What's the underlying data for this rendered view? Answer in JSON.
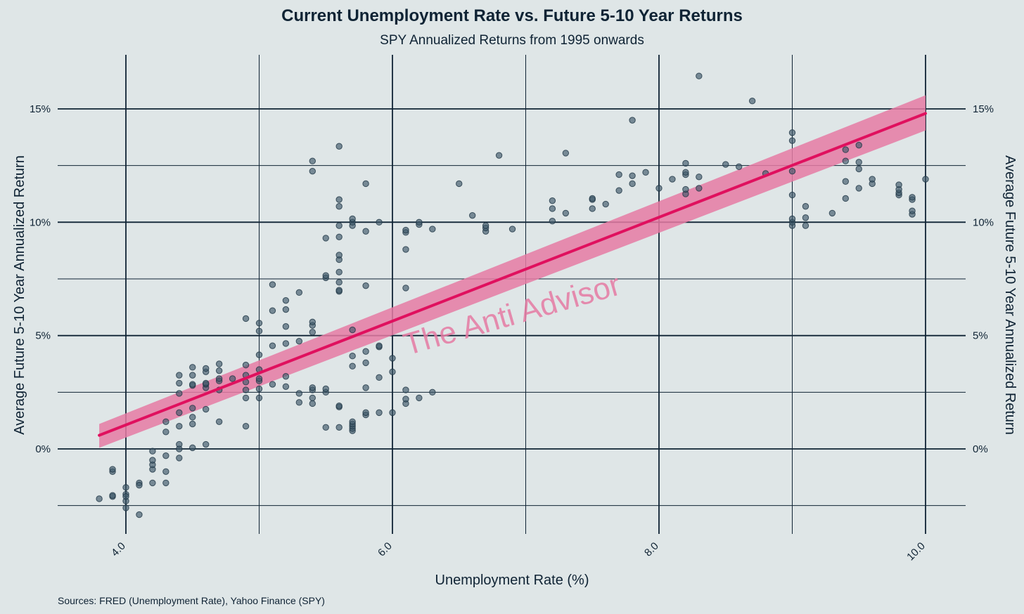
{
  "chart_data": {
    "type": "scatter",
    "title": "Current Unemployment Rate vs. Future 5-10 Year Returns",
    "subtitle": "SPY Annualized Returns from 1995 onwards",
    "xlabel": "Unemployment Rate (%)",
    "ylabel": "Average Future 5-10 Year Annualized Return",
    "ylabel_right": "Average Future 5-10 Year Annualized Return",
    "source": "Sources: FRED (Unemployment Rate), Yahoo Finance (SPY)",
    "watermark": "The Anti Advisor",
    "xlim": [
      3.5,
      10.3
    ],
    "ylim": [
      -3.0,
      17.5
    ],
    "x_ticks": [
      {
        "value": 4.0,
        "label": "4.0"
      },
      {
        "value": 6.0,
        "label": "6.0"
      },
      {
        "value": 8.0,
        "label": "8.0"
      },
      {
        "value": 10.0,
        "label": "10.0"
      }
    ],
    "x_minor_grid": [
      5.0,
      7.0,
      9.0
    ],
    "y_ticks": [
      {
        "value": 0,
        "label": "0%"
      },
      {
        "value": 5,
        "label": "5%"
      },
      {
        "value": 10,
        "label": "10%"
      },
      {
        "value": 15,
        "label": "15%"
      }
    ],
    "y_minor_grid": [
      -2.5,
      2.5,
      7.5,
      12.5
    ],
    "grid": true,
    "colors": {
      "points": "#3d5868",
      "regression_line": "#e0105e",
      "confidence_band": "#e67aa3",
      "grid": "#0f2334",
      "background": "#dfe6e7"
    },
    "regression": {
      "x_start": 3.8,
      "y_start": 0.6,
      "x_end": 10.0,
      "y_end": 14.8,
      "ci_start": [
        0.05,
        1.1
      ],
      "ci_end": [
        14.05,
        15.6
      ]
    },
    "points": [
      [
        3.8,
        -2.2
      ],
      [
        3.9,
        -2.1
      ],
      [
        3.9,
        -2.05
      ],
      [
        3.9,
        -1.0
      ],
      [
        3.9,
        -0.9
      ],
      [
        4.0,
        -2.3
      ],
      [
        4.0,
        -2.0
      ],
      [
        4.0,
        -2.6
      ],
      [
        4.0,
        -1.7
      ],
      [
        4.0,
        -2.1
      ],
      [
        4.1,
        -2.9
      ],
      [
        4.1,
        -1.5
      ],
      [
        4.1,
        -1.6
      ],
      [
        4.2,
        -1.5
      ],
      [
        4.2,
        -0.9
      ],
      [
        4.2,
        -0.7
      ],
      [
        4.2,
        -0.5
      ],
      [
        4.2,
        -0.1
      ],
      [
        4.3,
        -1.0
      ],
      [
        4.3,
        -0.3
      ],
      [
        4.3,
        -1.5
      ],
      [
        4.3,
        0.75
      ],
      [
        4.3,
        1.2
      ],
      [
        4.4,
        0.0
      ],
      [
        4.4,
        0.2
      ],
      [
        4.4,
        1.0
      ],
      [
        4.4,
        1.6
      ],
      [
        4.4,
        2.45
      ],
      [
        4.4,
        2.9
      ],
      [
        4.4,
        3.25
      ],
      [
        4.4,
        -0.4
      ],
      [
        4.5,
        0.05
      ],
      [
        4.5,
        1.1
      ],
      [
        4.5,
        1.4
      ],
      [
        4.5,
        1.8
      ],
      [
        4.5,
        2.8
      ],
      [
        4.5,
        2.85
      ],
      [
        4.5,
        3.25
      ],
      [
        4.5,
        3.6
      ],
      [
        4.6,
        0.2
      ],
      [
        4.6,
        1.75
      ],
      [
        4.6,
        2.7
      ],
      [
        4.6,
        2.85
      ],
      [
        4.6,
        2.9
      ],
      [
        4.6,
        3.4
      ],
      [
        4.6,
        3.55
      ],
      [
        4.7,
        1.2
      ],
      [
        4.7,
        2.6
      ],
      [
        4.7,
        3.0
      ],
      [
        4.7,
        3.1
      ],
      [
        4.7,
        3.45
      ],
      [
        4.7,
        3.75
      ],
      [
        4.8,
        3.1
      ],
      [
        4.9,
        1.0
      ],
      [
        4.9,
        2.25
      ],
      [
        4.9,
        2.6
      ],
      [
        4.9,
        2.95
      ],
      [
        4.9,
        3.25
      ],
      [
        4.9,
        3.7
      ],
      [
        4.9,
        5.75
      ],
      [
        5.0,
        2.25
      ],
      [
        5.0,
        2.65
      ],
      [
        5.0,
        3.0
      ],
      [
        5.0,
        3.1
      ],
      [
        5.0,
        3.5
      ],
      [
        5.0,
        4.15
      ],
      [
        5.0,
        5.2
      ],
      [
        5.0,
        5.55
      ],
      [
        5.1,
        2.85
      ],
      [
        5.1,
        4.55
      ],
      [
        5.1,
        6.1
      ],
      [
        5.1,
        7.25
      ],
      [
        5.2,
        2.75
      ],
      [
        5.2,
        3.2
      ],
      [
        5.2,
        4.65
      ],
      [
        5.2,
        5.4
      ],
      [
        5.2,
        6.15
      ],
      [
        5.2,
        6.55
      ],
      [
        5.3,
        2.05
      ],
      [
        5.3,
        2.45
      ],
      [
        5.3,
        4.75
      ],
      [
        5.3,
        6.9
      ],
      [
        5.4,
        2.0
      ],
      [
        5.4,
        2.25
      ],
      [
        5.4,
        2.6
      ],
      [
        5.4,
        2.7
      ],
      [
        5.4,
        5.15
      ],
      [
        5.4,
        5.45
      ],
      [
        5.4,
        5.6
      ],
      [
        5.4,
        12.25
      ],
      [
        5.4,
        12.7
      ],
      [
        5.5,
        0.95
      ],
      [
        5.5,
        2.5
      ],
      [
        5.5,
        2.65
      ],
      [
        5.5,
        7.55
      ],
      [
        5.5,
        7.65
      ],
      [
        5.5,
        9.3
      ],
      [
        5.6,
        0.95
      ],
      [
        5.6,
        1.85
      ],
      [
        5.6,
        1.9
      ],
      [
        5.6,
        6.95
      ],
      [
        5.6,
        7.0
      ],
      [
        5.6,
        7.35
      ],
      [
        5.6,
        7.8
      ],
      [
        5.6,
        8.35
      ],
      [
        5.6,
        8.55
      ],
      [
        5.6,
        9.35
      ],
      [
        5.6,
        9.85
      ],
      [
        5.6,
        10.7
      ],
      [
        5.6,
        11.0
      ],
      [
        5.6,
        13.35
      ],
      [
        5.7,
        0.8
      ],
      [
        5.7,
        0.9
      ],
      [
        5.7,
        1.0
      ],
      [
        5.7,
        1.1
      ],
      [
        5.7,
        1.2
      ],
      [
        5.7,
        3.65
      ],
      [
        5.7,
        4.1
      ],
      [
        5.7,
        5.25
      ],
      [
        5.7,
        9.85
      ],
      [
        5.7,
        10.0
      ],
      [
        5.7,
        10.15
      ],
      [
        5.8,
        1.5
      ],
      [
        5.8,
        1.6
      ],
      [
        5.8,
        2.7
      ],
      [
        5.8,
        3.8
      ],
      [
        5.8,
        4.3
      ],
      [
        5.8,
        7.2
      ],
      [
        5.8,
        9.6
      ],
      [
        5.8,
        11.7
      ],
      [
        5.9,
        1.6
      ],
      [
        5.9,
        3.15
      ],
      [
        5.9,
        4.5
      ],
      [
        5.9,
        4.55
      ],
      [
        5.9,
        10.0
      ],
      [
        6.0,
        1.6
      ],
      [
        6.0,
        3.4
      ],
      [
        6.0,
        4.0
      ],
      [
        6.1,
        2.0
      ],
      [
        6.1,
        2.2
      ],
      [
        6.1,
        2.6
      ],
      [
        6.1,
        7.1
      ],
      [
        6.1,
        8.8
      ],
      [
        6.1,
        9.55
      ],
      [
        6.1,
        9.65
      ],
      [
        6.2,
        2.25
      ],
      [
        6.2,
        9.9
      ],
      [
        6.2,
        10.0
      ],
      [
        6.3,
        2.5
      ],
      [
        6.3,
        9.7
      ],
      [
        6.5,
        11.7
      ],
      [
        6.6,
        10.3
      ],
      [
        6.7,
        9.6
      ],
      [
        6.7,
        9.75
      ],
      [
        6.7,
        9.85
      ],
      [
        6.8,
        12.95
      ],
      [
        6.9,
        9.7
      ],
      [
        7.2,
        10.05
      ],
      [
        7.2,
        10.6
      ],
      [
        7.2,
        10.95
      ],
      [
        7.3,
        10.4
      ],
      [
        7.3,
        13.05
      ],
      [
        7.5,
        10.6
      ],
      [
        7.5,
        11.0
      ],
      [
        7.5,
        11.05
      ],
      [
        7.6,
        10.8
      ],
      [
        7.7,
        11.4
      ],
      [
        7.7,
        12.1
      ],
      [
        7.8,
        11.7
      ],
      [
        7.8,
        12.05
      ],
      [
        7.8,
        14.5
      ],
      [
        7.9,
        12.2
      ],
      [
        8.0,
        11.5
      ],
      [
        8.1,
        11.9
      ],
      [
        8.2,
        11.25
      ],
      [
        8.2,
        11.45
      ],
      [
        8.2,
        12.1
      ],
      [
        8.2,
        12.2
      ],
      [
        8.2,
        12.6
      ],
      [
        8.3,
        11.5
      ],
      [
        8.3,
        12.0
      ],
      [
        8.3,
        16.45
      ],
      [
        8.5,
        12.55
      ],
      [
        8.6,
        12.45
      ],
      [
        8.7,
        15.35
      ],
      [
        8.8,
        12.15
      ],
      [
        9.0,
        9.85
      ],
      [
        9.0,
        10.0
      ],
      [
        9.0,
        10.15
      ],
      [
        9.0,
        11.2
      ],
      [
        9.0,
        12.25
      ],
      [
        9.0,
        13.6
      ],
      [
        9.0,
        13.95
      ],
      [
        9.1,
        9.85
      ],
      [
        9.1,
        10.2
      ],
      [
        9.1,
        10.7
      ],
      [
        9.3,
        10.4
      ],
      [
        9.4,
        11.05
      ],
      [
        9.4,
        11.8
      ],
      [
        9.4,
        12.7
      ],
      [
        9.4,
        13.2
      ],
      [
        9.5,
        11.5
      ],
      [
        9.5,
        12.35
      ],
      [
        9.5,
        12.65
      ],
      [
        9.5,
        13.4
      ],
      [
        9.6,
        11.7
      ],
      [
        9.6,
        11.9
      ],
      [
        9.8,
        11.2
      ],
      [
        9.8,
        11.3
      ],
      [
        9.8,
        11.45
      ],
      [
        9.8,
        11.65
      ],
      [
        9.9,
        10.35
      ],
      [
        9.9,
        10.5
      ],
      [
        9.9,
        11.0
      ],
      [
        9.9,
        11.1
      ],
      [
        10.0,
        11.9
      ]
    ]
  }
}
